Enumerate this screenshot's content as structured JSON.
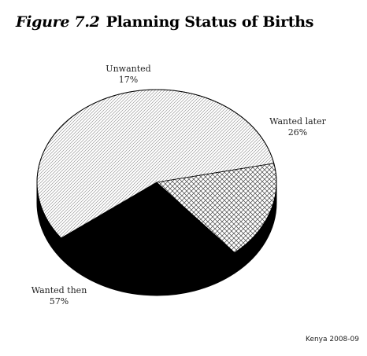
{
  "figure": {
    "number": "Figure 7.2",
    "title": "Planning Status of Births",
    "source": "Kenya 2008-09"
  },
  "chart_data": {
    "type": "pie",
    "title": "Planning Status of Births",
    "is_3d": true,
    "slices": [
      {
        "label": "Wanted then",
        "pct_label": "57%",
        "value": 57,
        "fill": "light-diagonal-hatch"
      },
      {
        "label": "Unwanted",
        "pct_label": "17%",
        "value": 17,
        "fill": "crosshatch"
      },
      {
        "label": "Wanted later",
        "pct_label": "26%",
        "value": 26,
        "fill": "#000000"
      }
    ]
  }
}
